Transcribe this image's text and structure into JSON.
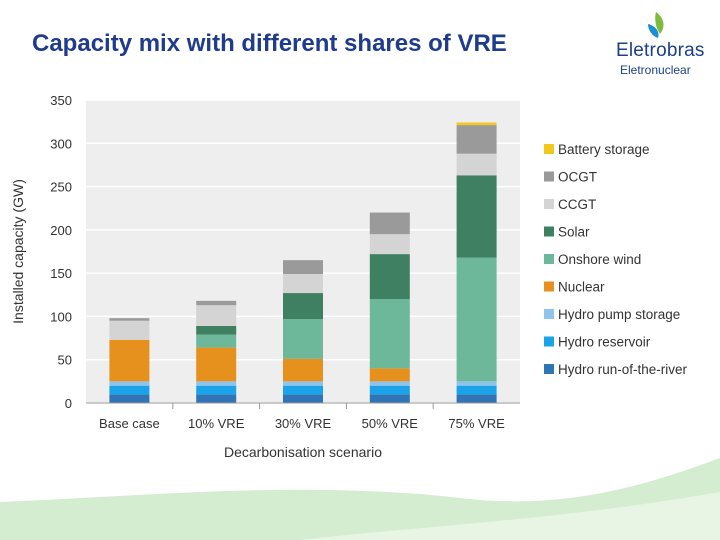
{
  "slide": {
    "title": "Capacity mix with different shares of VRE",
    "logo_name": "Eletrobras",
    "logo_sub": "Eletronuclear"
  },
  "colors": {
    "title": "#1f3c8c",
    "brand_green": "#7dbb3c",
    "brand_blue": "#1d8fd0",
    "wave": "#d4ecd0"
  },
  "chart_data": {
    "type": "bar",
    "stacked": true,
    "title": "",
    "xlabel": "Decarbonisation scenario",
    "ylabel": "Installed capacity (GW)",
    "ylim": [
      0,
      350
    ],
    "yticks": [
      0,
      50,
      100,
      150,
      200,
      250,
      300,
      350
    ],
    "grid": true,
    "legend_position": "right",
    "categories": [
      "Base case",
      "10% VRE",
      "30% VRE",
      "50% VRE",
      "75% VRE"
    ],
    "series": [
      {
        "name": "Hydro run-of-the-river",
        "color": "#2f75b5",
        "values": [
          10,
          10,
          10,
          10,
          10
        ]
      },
      {
        "name": "Hydro reservoir",
        "color": "#1aa3e8",
        "values": [
          10,
          10,
          10,
          10,
          10
        ]
      },
      {
        "name": "Hydro pump storage",
        "color": "#8fc3ea",
        "values": [
          5,
          5,
          5,
          5,
          5
        ]
      },
      {
        "name": "Nuclear",
        "color": "#e6901d",
        "values": [
          48,
          39,
          26,
          15,
          0
        ]
      },
      {
        "name": "Onshore wind",
        "color": "#6db89a",
        "values": [
          0,
          15,
          46,
          80,
          143
        ]
      },
      {
        "name": "Solar",
        "color": "#3f7f62",
        "values": [
          0,
          10,
          30,
          52,
          95
        ]
      },
      {
        "name": "CCGT",
        "color": "#d4d4d4",
        "values": [
          22,
          24,
          22,
          23,
          25
        ]
      },
      {
        "name": "OCGT",
        "color": "#9a9a9a",
        "values": [
          3,
          5,
          16,
          25,
          33
        ]
      },
      {
        "name": "Battery storage",
        "color": "#f2c81c",
        "values": [
          0,
          0,
          0,
          0,
          3
        ]
      }
    ]
  }
}
